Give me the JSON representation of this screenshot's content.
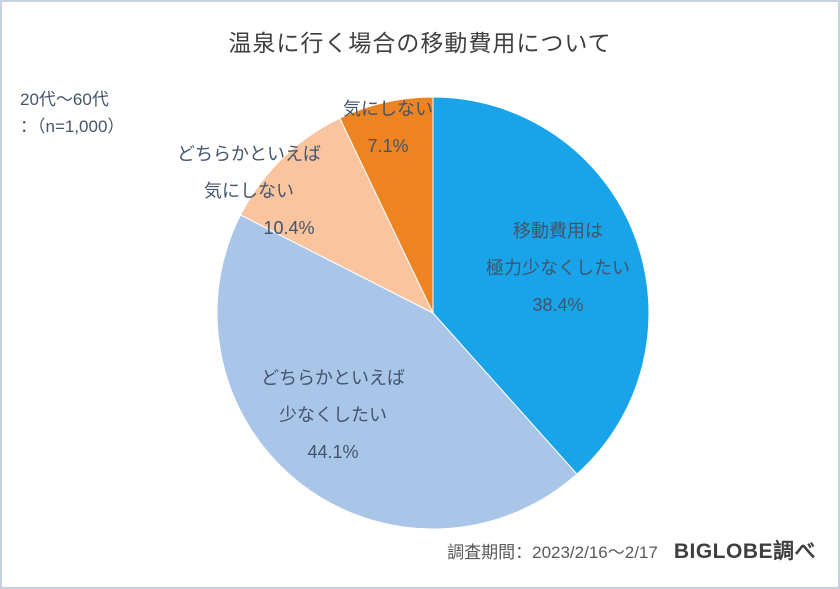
{
  "note": {
    "lines": [
      "20代～60代",
      "：（n=1,000）"
    ]
  },
  "footer": {
    "survey_period": "調査期間：2023/2/16～2/17",
    "source": "BIGLOBE調べ"
  },
  "chart_data": {
    "type": "pie",
    "title": "温泉に行く場合の移動費用について",
    "start_angle_deg": 0,
    "direction": "clockwise",
    "total": 100.0,
    "legend_position": "none",
    "segments": [
      {
        "label": "移動費用は極力少なくしたい",
        "label_lines": [
          "移動費用は",
          "極力少なくしたい"
        ],
        "value": 38.4,
        "pct_label": "38.4%",
        "color": "#19a3e8",
        "label_placement": "inside"
      },
      {
        "label": "どちらかといえば少なくしたい",
        "label_lines": [
          "どちらかといえば",
          "少なくしたい"
        ],
        "value": 44.1,
        "pct_label": "44.1%",
        "color": "#a9c6e9",
        "label_placement": "inside"
      },
      {
        "label": "どちらかといえば気にしない",
        "label_lines": [
          "どちらかといえば",
          "気にしない"
        ],
        "value": 10.4,
        "pct_label": "10.4%",
        "color": "#fac49e",
        "label_placement": "outside"
      },
      {
        "label": "気にしない",
        "label_lines": [
          "気にしない"
        ],
        "value": 7.1,
        "pct_label": "7.1%",
        "color": "#ee8322",
        "label_placement": "outside"
      }
    ]
  }
}
